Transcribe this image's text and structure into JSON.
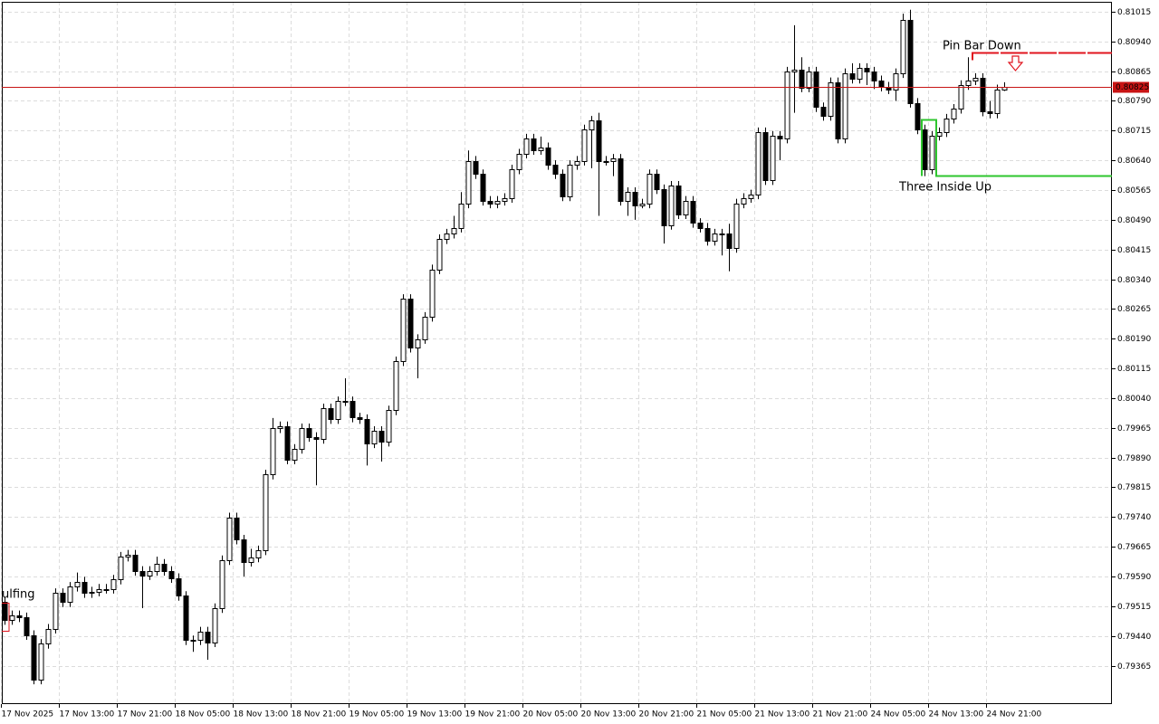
{
  "chart_data": {
    "type": "candlestick",
    "annotations": [
      {
        "text": "Pin Bar Down",
        "color": "#e0141e",
        "level": 0.80913
      },
      {
        "text": "Three Inside Up",
        "color": "#2ec62e",
        "level": 0.80601
      },
      {
        "text": "ulfing",
        "color": "#e0141e"
      }
    ],
    "current_price": 0.80825,
    "bull_color": "#ffffff",
    "bear_color": "#000000",
    "price_line_color": "#c81414",
    "grid": true,
    "ylim": [
      0.79268,
      0.8104
    ],
    "yticks": [
      0.81015,
      {
        "value": 0.8094,
        "label": "0.80940"
      },
      0.80865,
      {
        "value": 0.8079,
        "label": "0.80790"
      },
      0.80715,
      {
        "value": 0.8064,
        "label": "0.80640"
      },
      0.80565,
      {
        "value": 0.8049,
        "label": "0.80490"
      },
      0.80415,
      {
        "value": 0.8034,
        "label": "0.80340"
      },
      0.80265,
      {
        "value": 0.8019,
        "label": "0.80190"
      },
      0.80115,
      {
        "value": 0.8004,
        "label": "0.80040"
      },
      0.79965,
      {
        "value": 0.7989,
        "label": "0.79890"
      },
      0.79815,
      {
        "value": 0.7974,
        "label": "0.79740"
      },
      0.79665,
      {
        "value": 0.7959,
        "label": "0.79590"
      },
      0.79515,
      {
        "value": 0.7944,
        "label": "0.79440"
      },
      0.79365
    ],
    "categories": [
      "17 Nov 2025",
      null,
      null,
      null,
      null,
      null,
      null,
      null,
      "17 Nov 13:00",
      null,
      null,
      null,
      null,
      null,
      null,
      null,
      "17 Nov 21:00",
      null,
      null,
      null,
      null,
      null,
      null,
      null,
      "18 Nov 05:00",
      null,
      null,
      null,
      null,
      null,
      null,
      null,
      "18 Nov 13:00",
      null,
      null,
      null,
      null,
      null,
      null,
      null,
      "18 Nov 21:00",
      null,
      null,
      null,
      null,
      null,
      null,
      null,
      "19 Nov 05:00",
      null,
      null,
      null,
      null,
      null,
      null,
      null,
      "19 Nov 13:00",
      null,
      null,
      null,
      null,
      null,
      null,
      null,
      "19 Nov 21:00",
      null,
      null,
      null,
      null,
      null,
      null,
      null,
      "20 Nov 05:00",
      null,
      null,
      null,
      null,
      null,
      null,
      null,
      "20 Nov 13:00",
      null,
      null,
      null,
      null,
      null,
      null,
      null,
      "20 Nov 21:00",
      null,
      null,
      null,
      null,
      null,
      null,
      null,
      "21 Nov 05:00",
      null,
      null,
      null,
      null,
      null,
      null,
      null,
      "21 Nov 13:00",
      null,
      null,
      null,
      null,
      null,
      null,
      null,
      "21 Nov 21:00",
      null,
      null,
      null,
      null,
      null,
      null,
      null,
      "24 Nov 05:00",
      null,
      null,
      null,
      null,
      null,
      null,
      null,
      "24 Nov 13:00",
      null,
      null,
      null,
      null,
      null,
      null,
      null,
      "24 Nov 21:00",
      null,
      null
    ],
    "open": [
      0.79525,
      0.7948,
      0.79492,
      0.79487,
      0.79442,
      0.7933,
      0.7942,
      0.79458,
      0.79548,
      0.79525,
      0.79564,
      0.79577,
      0.79548,
      0.79552,
      0.79559,
      0.79559,
      0.79582,
      0.7964,
      0.79645,
      0.79604,
      0.79593,
      0.79604,
      0.79622,
      0.79604,
      0.79586,
      0.79541,
      0.79429,
      0.79429,
      0.79451,
      0.79424,
      0.7951,
      0.79631,
      0.79739,
      0.79683,
      0.79627,
      0.79638,
      0.79656,
      0.79847,
      0.79964,
      0.79969,
      0.79885,
      0.79912,
      0.79964,
      0.79942,
      0.79937,
      0.80014,
      0.79987,
      0.80032,
      0.80032,
      0.79991,
      0.79987,
      0.79926,
      0.79957,
      0.7993,
      0.80009,
      0.80133,
      0.8029,
      0.80167,
      0.80189,
      0.80245,
      0.80365,
      0.80441,
      0.80455,
      0.8047,
      0.80531,
      0.80639,
      0.80605,
      0.80538,
      0.80531,
      0.80538,
      0.80545,
      0.80617,
      0.80657,
      0.80695,
      0.80666,
      0.80673,
      0.80628,
      0.80605,
      0.80549,
      0.80628,
      0.80639,
      0.80718,
      0.8074,
      0.80639,
      0.80639,
      0.80644,
      0.80538,
      0.8056,
      0.80527,
      0.80531,
      0.80605,
      0.80567,
      0.80477,
      0.80576,
      0.80504,
      0.80538,
      0.80482,
      0.8047,
      0.80437,
      0.80455,
      0.80455,
      0.80419,
      0.80531,
      0.80545,
      0.80554,
      0.80711,
      0.8059,
      0.80702,
      0.80695,
      0.80864,
      0.80869,
      0.80824,
      0.80864,
      0.80774,
      0.80752,
      0.80837,
      0.80695,
      0.8086,
      0.80846,
      0.80873,
      0.80864,
      0.80842,
      0.80826,
      0.80819,
      0.8086,
      0.80995,
      0.80785,
      0.80718,
      0.80617,
      0.80702,
      0.80711,
      0.80745,
      0.8077,
      0.8083,
      0.80842,
      0.80848,
      0.80763,
      0.80758,
      0.80819
    ],
    "high": [
      0.79537,
      0.79504,
      0.79504,
      0.79499,
      0.79454,
      0.79432,
      0.7947,
      0.7956,
      0.7956,
      0.79576,
      0.796,
      0.79589,
      0.79564,
      0.79571,
      0.79571,
      0.79594,
      0.79652,
      0.79657,
      0.79657,
      0.79616,
      0.79616,
      0.7964,
      0.79634,
      0.79616,
      0.79598,
      0.79553,
      0.79441,
      0.79463,
      0.79463,
      0.79522,
      0.79643,
      0.79751,
      0.79751,
      0.79695,
      0.7966,
      0.79668,
      0.79859,
      0.7999,
      0.79981,
      0.79981,
      0.79924,
      0.79976,
      0.79976,
      0.79954,
      0.80026,
      0.80026,
      0.80044,
      0.8009,
      0.80044,
      0.80003,
      0.79999,
      0.79969,
      0.79969,
      0.80021,
      0.80145,
      0.80302,
      0.80302,
      0.80201,
      0.80257,
      0.80377,
      0.80453,
      0.80467,
      0.805,
      0.8056,
      0.80665,
      0.80651,
      0.80617,
      0.8055,
      0.8055,
      0.80557,
      0.80629,
      0.80669,
      0.80707,
      0.80707,
      0.807,
      0.80685,
      0.8064,
      0.80617,
      0.8064,
      0.80651,
      0.8073,
      0.80752,
      0.8076,
      0.80651,
      0.80656,
      0.80656,
      0.80572,
      0.80572,
      0.80543,
      0.80617,
      0.80617,
      0.80579,
      0.80588,
      0.80588,
      0.8055,
      0.8055,
      0.80494,
      0.80482,
      0.80467,
      0.80467,
      0.8048,
      0.80543,
      0.80557,
      0.80566,
      0.80723,
      0.80723,
      0.80714,
      0.80714,
      0.80876,
      0.80981,
      0.809,
      0.80876,
      0.80876,
      0.80786,
      0.80849,
      0.80849,
      0.80872,
      0.80885,
      0.80885,
      0.80885,
      0.80876,
      0.80854,
      0.80838,
      0.80872,
      0.8101,
      0.8102,
      0.80797,
      0.8073,
      0.80714,
      0.80723,
      0.80757,
      0.80782,
      0.80842,
      0.809,
      0.8086,
      0.8086,
      0.8079,
      0.80831,
      0.80837
    ],
    "low": [
      0.79468,
      0.79468,
      0.79475,
      0.7943,
      0.79318,
      0.79318,
      0.79408,
      0.79446,
      0.79513,
      0.79513,
      0.79552,
      0.79536,
      0.79536,
      0.7954,
      0.79547,
      0.79547,
      0.7957,
      0.79628,
      0.79592,
      0.7951,
      0.79581,
      0.79592,
      0.79592,
      0.79574,
      0.79529,
      0.79417,
      0.794,
      0.79417,
      0.7938,
      0.79412,
      0.79498,
      0.79619,
      0.79671,
      0.7959,
      0.79615,
      0.79626,
      0.79644,
      0.79835,
      0.79952,
      0.79873,
      0.79873,
      0.799,
      0.7993,
      0.7982,
      0.79925,
      0.79975,
      0.79975,
      0.8002,
      0.79979,
      0.79975,
      0.7987,
      0.79914,
      0.7988,
      0.79918,
      0.79997,
      0.80121,
      0.80155,
      0.8009,
      0.80177,
      0.80233,
      0.80353,
      0.80429,
      0.80443,
      0.80458,
      0.80519,
      0.80593,
      0.80526,
      0.80519,
      0.80519,
      0.80526,
      0.80533,
      0.80605,
      0.80645,
      0.80654,
      0.80654,
      0.80616,
      0.80593,
      0.80537,
      0.80537,
      0.80616,
      0.80627,
      0.8062,
      0.805,
      0.80627,
      0.806,
      0.80526,
      0.805,
      0.8049,
      0.80519,
      0.80519,
      0.80555,
      0.8043,
      0.80465,
      0.80492,
      0.80492,
      0.8047,
      0.80458,
      0.80425,
      0.80425,
      0.804,
      0.8036,
      0.80407,
      0.80519,
      0.80533,
      0.80542,
      0.80578,
      0.80578,
      0.8064,
      0.80683,
      0.8076,
      0.80812,
      0.80812,
      0.80762,
      0.8074,
      0.8074,
      0.80683,
      0.80683,
      0.80834,
      0.80834,
      0.8083,
      0.8082,
      0.80814,
      0.80807,
      0.8079,
      0.80848,
      0.80773,
      0.80706,
      0.806,
      0.80605,
      0.8069,
      0.80699,
      0.80733,
      0.80758,
      0.80818,
      0.8083,
      0.80751,
      0.80746,
      0.80746,
      0.80815
    ],
    "close": [
      0.7948,
      0.79492,
      0.79487,
      0.79442,
      0.7933,
      0.7942,
      0.79458,
      0.79548,
      0.79525,
      0.79564,
      0.79577,
      0.79548,
      0.79552,
      0.79559,
      0.79559,
      0.79582,
      0.7964,
      0.79645,
      0.79604,
      0.79593,
      0.79604,
      0.79622,
      0.79604,
      0.79586,
      0.79541,
      0.79429,
      0.79429,
      0.79451,
      0.79424,
      0.7951,
      0.79631,
      0.79739,
      0.79683,
      0.79627,
      0.79638,
      0.79656,
      0.79847,
      0.79964,
      0.79969,
      0.79885,
      0.79912,
      0.79964,
      0.79942,
      0.79937,
      0.80014,
      0.79987,
      0.80032,
      0.80032,
      0.79991,
      0.79987,
      0.79926,
      0.79957,
      0.7993,
      0.80009,
      0.80133,
      0.8029,
      0.80167,
      0.80189,
      0.80245,
      0.80365,
      0.80441,
      0.80455,
      0.8047,
      0.80531,
      0.80639,
      0.80605,
      0.80538,
      0.80531,
      0.80538,
      0.80545,
      0.80617,
      0.80657,
      0.80695,
      0.80666,
      0.80673,
      0.80628,
      0.80605,
      0.80549,
      0.80628,
      0.80639,
      0.80718,
      0.8074,
      0.80639,
      0.80639,
      0.80644,
      0.80538,
      0.8056,
      0.80527,
      0.80531,
      0.80605,
      0.80567,
      0.80477,
      0.80576,
      0.80504,
      0.80538,
      0.80482,
      0.8047,
      0.80437,
      0.80455,
      0.80455,
      0.80419,
      0.80531,
      0.80545,
      0.80554,
      0.80711,
      0.8059,
      0.80702,
      0.80695,
      0.80864,
      0.80869,
      0.80824,
      0.80864,
      0.80774,
      0.80752,
      0.80837,
      0.80695,
      0.8086,
      0.80846,
      0.80873,
      0.80864,
      0.80842,
      0.80826,
      0.80819,
      0.8086,
      0.80995,
      0.80785,
      0.80718,
      0.80617,
      0.80702,
      0.80711,
      0.80745,
      0.8077,
      0.8083,
      0.80842,
      0.80848,
      0.80763,
      0.80758,
      0.80819,
      0.80825
    ]
  }
}
